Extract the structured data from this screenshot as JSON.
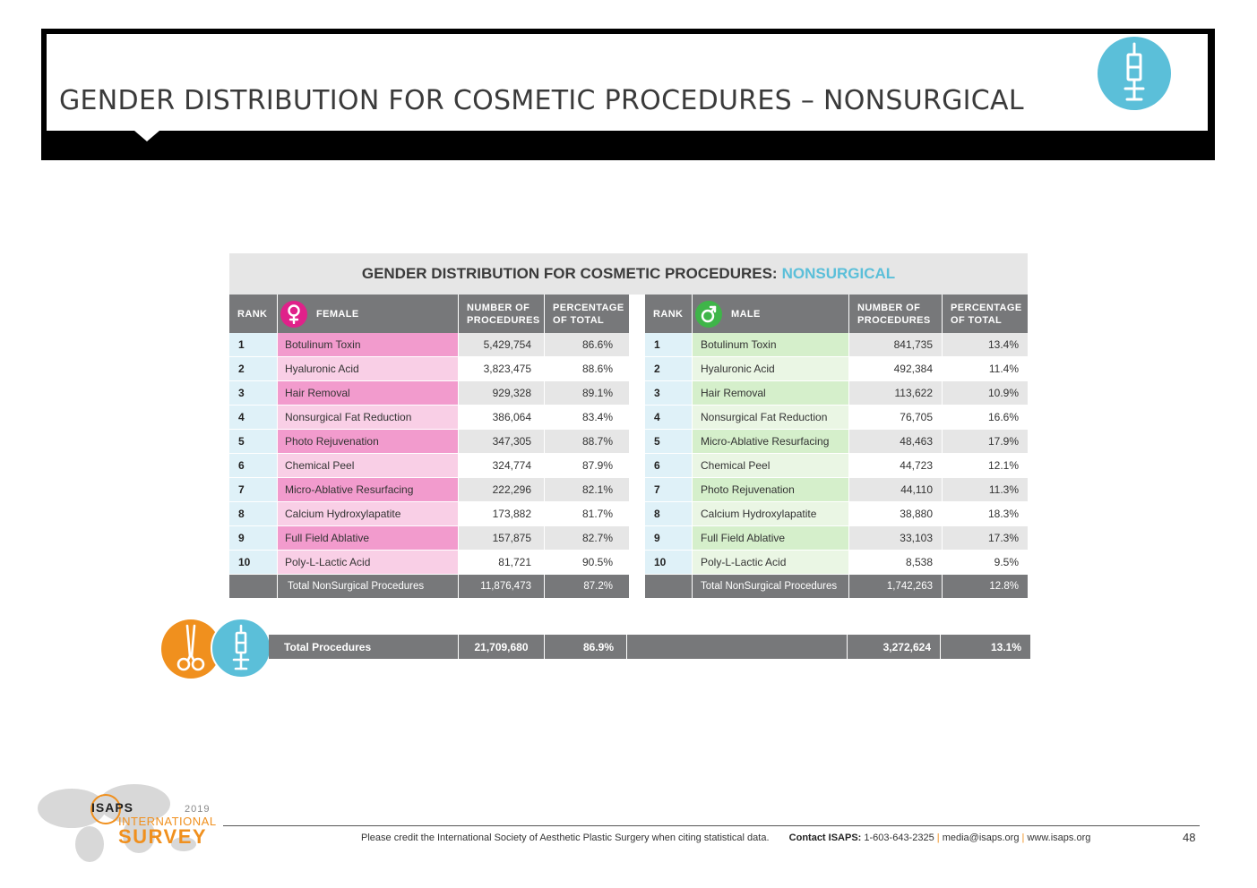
{
  "page": {
    "title": "GENDER DISTRIBUTION FOR COSMETIC PROCEDURES – NONSURGICAL",
    "header_icon": "syringe-icon",
    "number": "48"
  },
  "table": {
    "title_main": "GENDER DISTRIBUTION FOR COSMETIC PROCEDURES:",
    "title_accent": "NONSURGICAL",
    "female": {
      "headers": {
        "rank": "RANK",
        "name": "FEMALE",
        "num": "NUMBER OF PROCEDURES",
        "pct": "PERCENTAGE OF TOTAL"
      },
      "icon": "female-symbol-icon",
      "rows": [
        {
          "rank": "1",
          "name": "Botulinum Toxin",
          "num": "5,429,754",
          "pct": "86.6%"
        },
        {
          "rank": "2",
          "name": "Hyaluronic Acid",
          "num": "3,823,475",
          "pct": "88.6%"
        },
        {
          "rank": "3",
          "name": "Hair Removal",
          "num": "929,328",
          "pct": "89.1%"
        },
        {
          "rank": "4",
          "name": "Nonsurgical Fat Reduction",
          "num": "386,064",
          "pct": "83.4%"
        },
        {
          "rank": "5",
          "name": "Photo Rejuvenation",
          "num": "347,305",
          "pct": "88.7%"
        },
        {
          "rank": "6",
          "name": "Chemical Peel",
          "num": "324,774",
          "pct": "87.9%"
        },
        {
          "rank": "7",
          "name": "Micro-Ablative Resurfacing",
          "num": "222,296",
          "pct": "82.1%"
        },
        {
          "rank": "8",
          "name": "Calcium Hydroxylapatite",
          "num": "173,882",
          "pct": "81.7%"
        },
        {
          "rank": "9",
          "name": "Full Field Ablative",
          "num": "157,875",
          "pct": "82.7%"
        },
        {
          "rank": "10",
          "name": "Poly-L-Lactic Acid",
          "num": "81,721",
          "pct": "90.5%"
        }
      ],
      "total": {
        "label": "Total NonSurgical Procedures",
        "num": "11,876,473",
        "pct": "87.2%"
      }
    },
    "male": {
      "headers": {
        "rank": "RANK",
        "name": "MALE",
        "num": "NUMBER OF PROCEDURES",
        "pct": "PERCENTAGE OF TOTAL"
      },
      "icon": "male-symbol-icon",
      "rows": [
        {
          "rank": "1",
          "name": "Botulinum Toxin",
          "num": "841,735",
          "pct": "13.4%"
        },
        {
          "rank": "2",
          "name": "Hyaluronic Acid",
          "num": "492,384",
          "pct": "11.4%"
        },
        {
          "rank": "3",
          "name": "Hair Removal",
          "num": "113,622",
          "pct": "10.9%"
        },
        {
          "rank": "4",
          "name": "Nonsurgical Fat Reduction",
          "num": "76,705",
          "pct": "16.6%"
        },
        {
          "rank": "5",
          "name": "Micro-Ablative Resurfacing",
          "num": "48,463",
          "pct": "17.9%"
        },
        {
          "rank": "6",
          "name": "Chemical Peel",
          "num": "44,723",
          "pct": "12.1%"
        },
        {
          "rank": "7",
          "name": "Photo Rejuvenation",
          "num": "44,110",
          "pct": "11.3%"
        },
        {
          "rank": "8",
          "name": "Calcium Hydroxylapatite",
          "num": "38,880",
          "pct": "18.3%"
        },
        {
          "rank": "9",
          "name": "Full Field Ablative",
          "num": "33,103",
          "pct": "17.3%"
        },
        {
          "rank": "10",
          "name": "Poly-L-Lactic Acid",
          "num": "8,538",
          "pct": "9.5%"
        }
      ],
      "total": {
        "label": "Total NonSurgical Procedures",
        "num": "1,742,263",
        "pct": "12.8%"
      }
    }
  },
  "grand_total": {
    "label": "Total Procedures",
    "female_num": "21,709,680",
    "female_pct": "86.9%",
    "male_num": "3,272,624",
    "male_pct": "13.1%",
    "icons": [
      "scissors-icon",
      "syringe-icon"
    ]
  },
  "footer": {
    "credit": "Please credit the International Society of Aesthetic Plastic Surgery when citing statistical data.",
    "contact_label": "Contact ISAPS:",
    "phone": "1-603-643-2325",
    "sep": "|",
    "email": "media@isaps.org",
    "website": "www.isaps.org"
  },
  "logo": {
    "org": "ISAPS",
    "year": "2019",
    "line1": "INTERNATIONAL",
    "line2": "SURVEY"
  },
  "colors": {
    "accent_blue": "#5bbfd9",
    "female_pink": "#e0218a",
    "male_green": "#3fb549",
    "orange": "#f0901e",
    "header_gray": "#77787a"
  }
}
